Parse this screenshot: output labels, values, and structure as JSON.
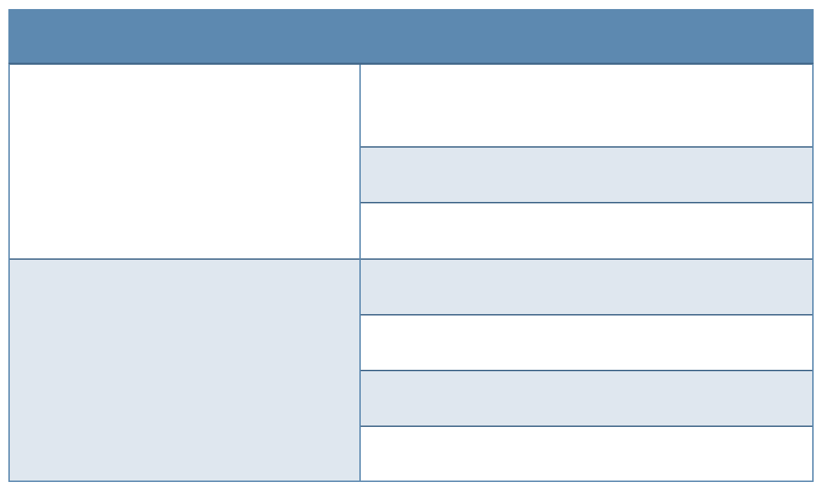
{
  "colors": {
    "header": "#5d89b0",
    "banded_row": "#dfe7ef",
    "plain_row": "#ffffff",
    "border": "#5d89b0",
    "row_divider": "#456a8c"
  },
  "table": {
    "header": "",
    "groups": [
      {
        "label": "",
        "band": false,
        "rows": [
          "",
          "",
          ""
        ]
      },
      {
        "label": "",
        "band": true,
        "rows": [
          "",
          "",
          "",
          ""
        ]
      }
    ],
    "row_bands": [
      false,
      true,
      false,
      true,
      false,
      true,
      false
    ]
  }
}
